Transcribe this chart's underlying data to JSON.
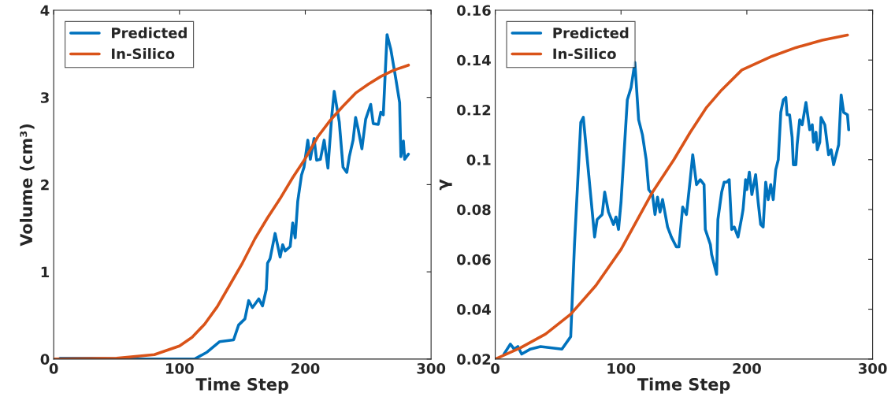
{
  "chart_data": [
    {
      "type": "line",
      "xlabel": "Time Step",
      "ylabel": "Volume (cm³)",
      "xlim": [
        0,
        300
      ],
      "xticks": [
        0,
        100,
        200,
        300
      ],
      "ylim": [
        0,
        4
      ],
      "yticks": [
        0,
        1,
        2,
        3,
        4
      ],
      "legend": "top left",
      "grid": false,
      "line_style": "solid",
      "series": [
        {
          "name": "Predicted",
          "color": "#0072bd",
          "x": [
            5,
            30,
            60,
            100,
            112,
            122,
            132,
            143,
            147,
            152,
            155,
            158,
            163,
            166,
            169,
            170,
            172,
            176,
            180,
            182,
            184,
            188,
            190,
            192,
            194,
            197,
            199,
            202,
            204,
            207,
            209,
            212,
            215,
            218,
            221,
            223,
            227,
            230,
            233,
            235,
            238,
            240,
            242,
            245,
            248,
            252,
            254,
            258,
            260,
            262,
            265,
            268,
            272,
            275,
            276,
            278,
            279,
            282
          ],
          "values": [
            0.01,
            0.01,
            0.0,
            0.0,
            0.0,
            0.08,
            0.2,
            0.22,
            0.39,
            0.46,
            0.67,
            0.59,
            0.69,
            0.61,
            0.8,
            1.1,
            1.15,
            1.44,
            1.17,
            1.31,
            1.24,
            1.29,
            1.56,
            1.39,
            1.81,
            2.11,
            2.2,
            2.51,
            2.29,
            2.53,
            2.28,
            2.29,
            2.51,
            2.19,
            2.78,
            3.07,
            2.72,
            2.2,
            2.14,
            2.32,
            2.51,
            2.77,
            2.64,
            2.41,
            2.75,
            2.92,
            2.7,
            2.69,
            2.83,
            2.8,
            3.72,
            3.55,
            3.21,
            2.94,
            2.32,
            2.5,
            2.29,
            2.35
          ]
        },
        {
          "name": "In-Silico",
          "color": "#d95319",
          "x": [
            0,
            50,
            80,
            100,
            110,
            120,
            130,
            140,
            150,
            160,
            170,
            180,
            190,
            200,
            210,
            220,
            230,
            240,
            250,
            260,
            270,
            282
          ],
          "values": [
            0.0,
            0.01,
            0.05,
            0.15,
            0.25,
            0.4,
            0.6,
            0.85,
            1.1,
            1.38,
            1.62,
            1.84,
            2.08,
            2.3,
            2.55,
            2.74,
            2.9,
            3.05,
            3.15,
            3.24,
            3.31,
            3.37
          ]
        }
      ]
    },
    {
      "type": "line",
      "xlabel": "Time Step",
      "ylabel": "γ",
      "xlim": [
        0,
        300
      ],
      "xticks": [
        0,
        100,
        200,
        300
      ],
      "ylim": [
        0.02,
        0.16
      ],
      "yticks": [
        0.02,
        0.04,
        0.06,
        0.08,
        0.1,
        0.12,
        0.14,
        0.16
      ],
      "legend": "top left",
      "grid": false,
      "line_style": "solid",
      "series": [
        {
          "name": "Predicted",
          "color": "#0072bd",
          "x": [
            7,
            12,
            15,
            18,
            21,
            28,
            36,
            53,
            60,
            63,
            68,
            70,
            79,
            81,
            85,
            87,
            90,
            94,
            96,
            98,
            100,
            105,
            108,
            111,
            114,
            117,
            120,
            122,
            125,
            127,
            129,
            131,
            133,
            137,
            140,
            144,
            146,
            149,
            152,
            155,
            157,
            160,
            163,
            166,
            167,
            171,
            172,
            174,
            176,
            177,
            180,
            182,
            184,
            186,
            188,
            190,
            193,
            196,
            197,
            199,
            200,
            202,
            204,
            207,
            209,
            211,
            213,
            215,
            217,
            219,
            221,
            223,
            225,
            227,
            229,
            231,
            232,
            234,
            236,
            237,
            239,
            240,
            242,
            244,
            247,
            250,
            252,
            253,
            255,
            256,
            258,
            259,
            262,
            265,
            267,
            269,
            271,
            273,
            275,
            277,
            280,
            281
          ],
          "values": [
            0.022,
            0.026,
            0.024,
            0.025,
            0.022,
            0.024,
            0.025,
            0.024,
            0.029,
            0.066,
            0.115,
            0.117,
            0.069,
            0.076,
            0.078,
            0.087,
            0.079,
            0.074,
            0.077,
            0.072,
            0.083,
            0.124,
            0.129,
            0.139,
            0.116,
            0.11,
            0.1,
            0.088,
            0.086,
            0.078,
            0.085,
            0.079,
            0.084,
            0.073,
            0.069,
            0.065,
            0.065,
            0.081,
            0.078,
            0.092,
            0.102,
            0.09,
            0.092,
            0.09,
            0.072,
            0.066,
            0.062,
            0.058,
            0.054,
            0.076,
            0.087,
            0.091,
            0.091,
            0.092,
            0.072,
            0.073,
            0.069,
            0.077,
            0.08,
            0.092,
            0.088,
            0.095,
            0.086,
            0.094,
            0.083,
            0.074,
            0.073,
            0.091,
            0.084,
            0.09,
            0.084,
            0.096,
            0.1,
            0.119,
            0.124,
            0.125,
            0.118,
            0.118,
            0.109,
            0.098,
            0.098,
            0.106,
            0.116,
            0.114,
            0.123,
            0.112,
            0.114,
            0.107,
            0.111,
            0.104,
            0.107,
            0.117,
            0.114,
            0.102,
            0.104,
            0.098,
            0.102,
            0.106,
            0.126,
            0.119,
            0.118,
            0.112
          ]
        },
        {
          "name": "In-Silico",
          "color": "#d95319",
          "x": [
            0,
            20,
            40,
            60,
            80,
            100,
            125,
            142,
            155,
            168,
            180,
            196,
            220,
            239,
            260,
            280
          ],
          "values": [
            0.02,
            0.0245,
            0.03,
            0.038,
            0.0495,
            0.064,
            0.087,
            0.1,
            0.111,
            0.121,
            0.128,
            0.136,
            0.1415,
            0.145,
            0.148,
            0.15
          ]
        }
      ]
    }
  ]
}
